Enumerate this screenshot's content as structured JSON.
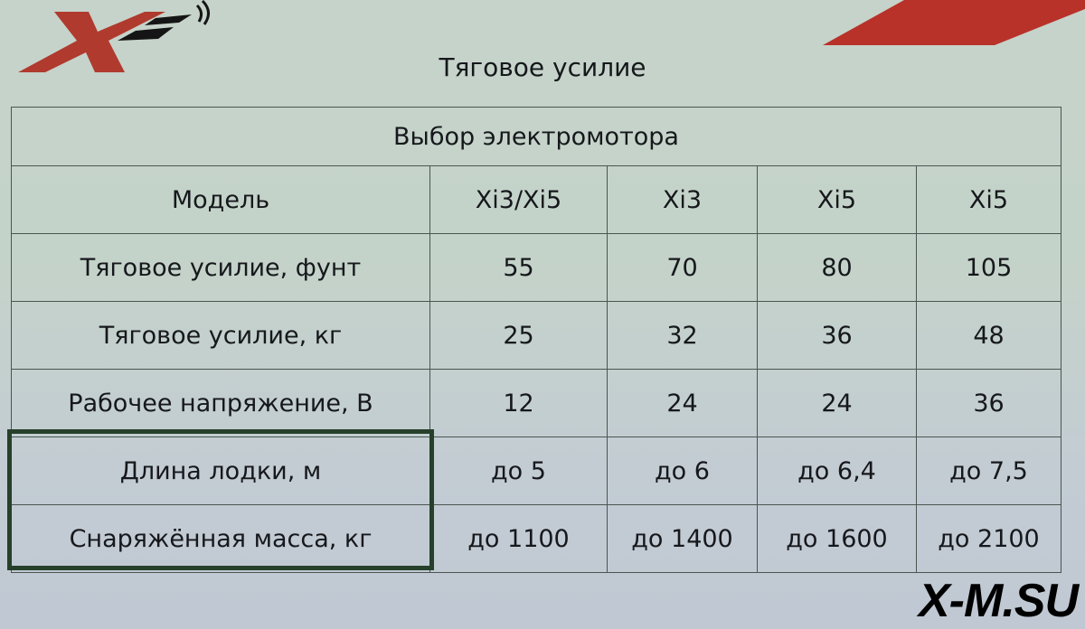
{
  "logo_text": "X",
  "title": "Тяговое усилие",
  "table": {
    "caption": "Выбор электромотора",
    "header": [
      "Модель",
      "Xi3/Xi5",
      "Xi3",
      "Xi5",
      "Xi5"
    ],
    "rows": [
      [
        "Тяговое усилие, фунт",
        "55",
        "70",
        "80",
        "105"
      ],
      [
        "Тяговое усилие, кг",
        "25",
        "32",
        "36",
        "48"
      ],
      [
        "Рабочее напряжение, В",
        "12",
        "24",
        "24",
        "36"
      ],
      [
        "Длина лодки, м",
        "до 5",
        "до 6",
        "до 6,4",
        "до 7,5"
      ],
      [
        "Снаряжённая масса, кг",
        "до 1100",
        "до 1400",
        "до 1600",
        "до 2100"
      ]
    ]
  },
  "watermark": "X-M.SU",
  "colors": {
    "logo_red": "#b03a2e",
    "highlight": "#26402a",
    "stripe_red": "#b8322a"
  }
}
